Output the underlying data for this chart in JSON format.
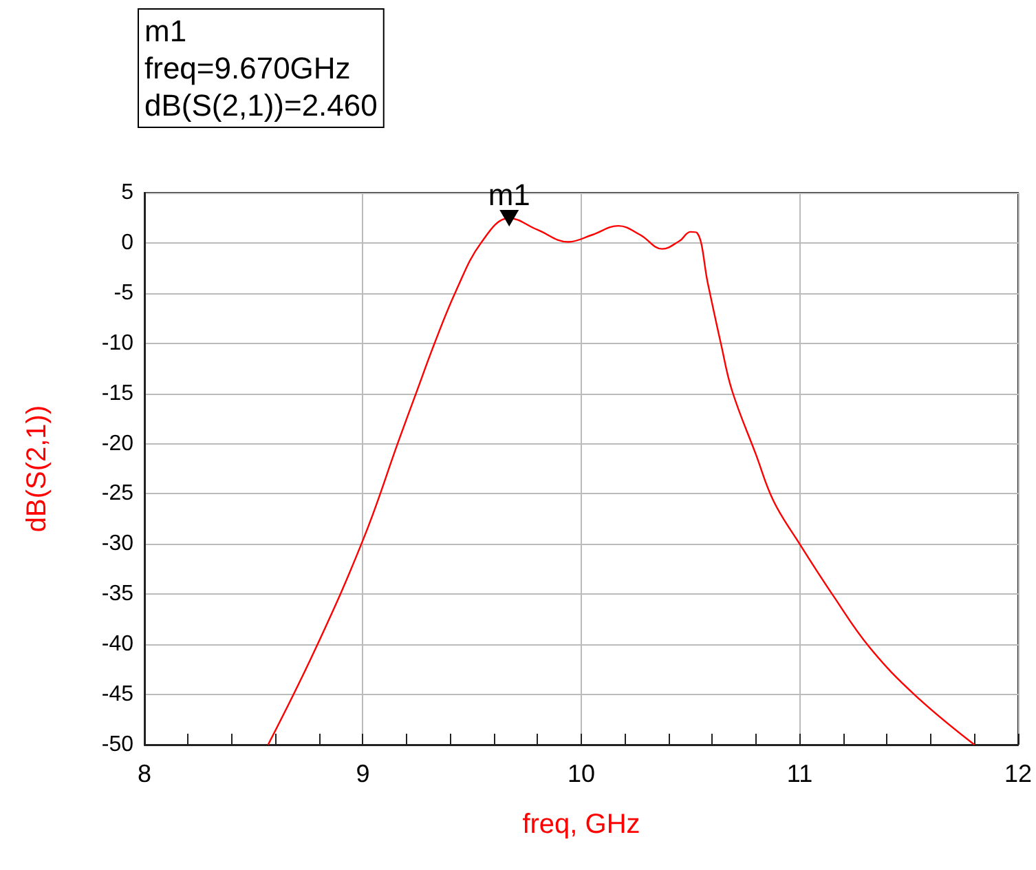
{
  "chart_data": {
    "type": "line",
    "xlabel": "freq, GHz",
    "ylabel": "dB(S(2,1))",
    "annotations": [
      "m1\nfreq=9.670GHz\ndB(S(2,1))=2.460",
      {
        "text": "m1",
        "x": 9.67,
        "y": 2.46
      }
    ],
    "series": [
      {
        "color": "#ff0000",
        "x": [
          8.566,
          8.786,
          9.006,
          9.164,
          9.245,
          9.33,
          9.426,
          9.541,
          9.67,
          9.8,
          9.94,
          10.05,
          10.17,
          10.27,
          10.37,
          10.45,
          10.5,
          10.53,
          10.58,
          10.64,
          10.69,
          10.8,
          10.88,
          11.0,
          11.155,
          11.32,
          11.53,
          11.8
        ],
        "values": [
          -50,
          -40.3,
          -29.3,
          -19.7,
          -14.9,
          -9.9,
          -4.8,
          0,
          2.46,
          1.3,
          0.1,
          0.8,
          1.7,
          0.8,
          -0.6,
          0.2,
          1.1,
          1.0,
          -4.1,
          -10.1,
          -14.7,
          -21.1,
          -25.7,
          -30,
          -35.2,
          -40.3,
          -45.1,
          -50
        ]
      }
    ],
    "xlim": [
      8,
      12
    ],
    "xticks": [
      8,
      9,
      10,
      11,
      12
    ],
    "ylim": [
      -50,
      5
    ],
    "yticks": [
      -50,
      -45,
      -40,
      -35,
      -30,
      -25,
      -20,
      -15,
      -10,
      -5,
      0,
      5
    ],
    "grid": true,
    "marker": "none",
    "line_style": "solid"
  }
}
